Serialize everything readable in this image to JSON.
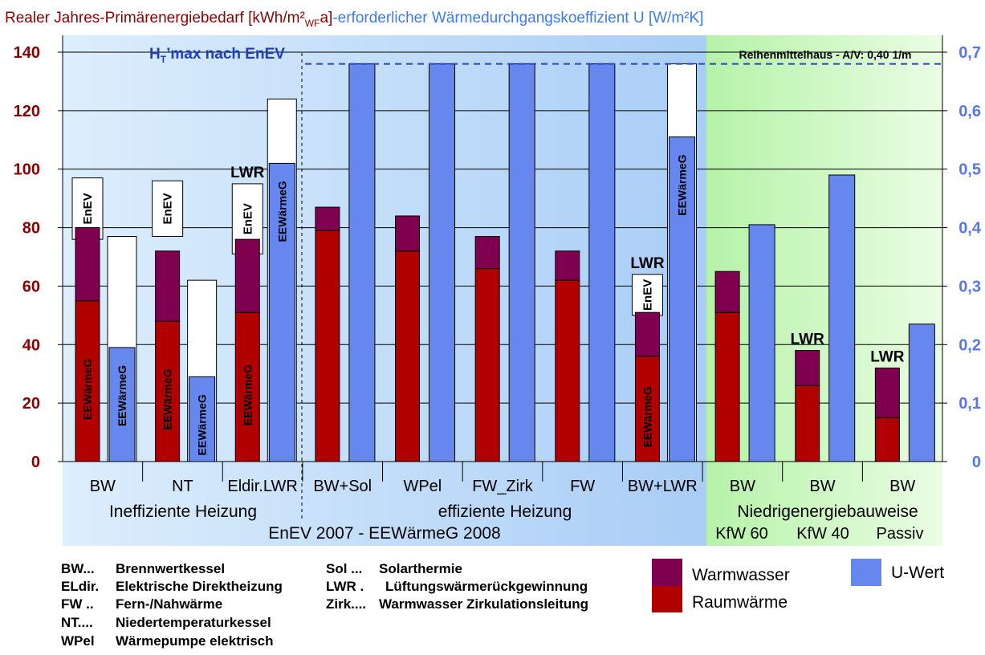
{
  "title_left": "Realer Jahres-Primärenergiebedarf [kWh/m²",
  "title_left_sub": "WF",
  "title_left_end": "a]",
  "title_right": "-erforderlicher Wärmedurchgangskoeffizient U [W/m²K]",
  "colors": {
    "warmwasser": "#800050",
    "raumwaerme": "#b00000",
    "uwert": "#6688ee",
    "left_axis": "#8b0000",
    "right_axis": "#5577ee",
    "enev_line": "#2244cc"
  },
  "chart_data": {
    "type": "bar",
    "title": "Realer Jahres-Primärenergiebedarf [kWh/m²WFa]-erforderlicher Wärmedurchgangskoeffizient U [W/m²K]",
    "ylim_left": [
      0,
      140
    ],
    "ylim_right": [
      0,
      0.7
    ],
    "yticks_left": [
      "0",
      "20",
      "40",
      "60",
      "80",
      "100",
      "120",
      "140"
    ],
    "yticks_right": [
      "0",
      "0,1",
      "0,2",
      "0,3",
      "0,4",
      "0,5",
      "0,6",
      "0,7"
    ],
    "categories": [
      "BW",
      "NT",
      "Eldir.LWR",
      "BW+Sol",
      "WPel",
      "FW_Zirk",
      "FW",
      "BW+LWR",
      "BW",
      "BW",
      "BW"
    ],
    "series": [
      {
        "name": "Raumwärme",
        "values": [
          55,
          48,
          51,
          79,
          72,
          66,
          62,
          36,
          51,
          26,
          15
        ]
      },
      {
        "name": "Warmwasser",
        "values": [
          25,
          24,
          25,
          8,
          12,
          11,
          10,
          15,
          14,
          12,
          17
        ]
      },
      {
        "name": "U-Wert",
        "values": [
          0.195,
          0.145,
          0.51,
          0.68,
          0.68,
          0.68,
          0.68,
          0.555,
          0.405,
          0.49,
          0.235
        ]
      }
    ],
    "enev_primary_limit": [
      97,
      96,
      95,
      null,
      null,
      null,
      null,
      64,
      null,
      null,
      null
    ],
    "enev_primary_lower": [
      76,
      77,
      71,
      null,
      null,
      null,
      null,
      50,
      null,
      null,
      null
    ],
    "enev_u_limit": [
      0.385,
      0.31,
      0.62,
      null,
      null,
      null,
      null,
      0.68,
      null,
      null,
      null
    ],
    "ht_max": 0.68,
    "ht_max_label": "H",
    "ht_max_label_sub": "T",
    "ht_max_label_end": "’max nach EnEV",
    "annotation": "Reihenmittelhaus - A/V: 0,40 1/m",
    "bar_top_labels": [
      "",
      "",
      "LWR",
      "",
      "",
      "",
      "",
      "LWR",
      "",
      "LWR",
      "LWR"
    ],
    "enev_label": "EnEV",
    "eew_label": "EEWärmeG",
    "group_labels": [
      "Ineffiziente Heizung",
      "effiziente Heizung",
      "Niedrigenergiebauweise"
    ],
    "group_sub_labels": [
      "KfW 60",
      "KfW 40",
      "Passiv"
    ],
    "footer": "EnEV 2007 - EEWärmeG 2008",
    "legend": [
      "Warmwasser",
      "Raumwärme",
      "U-Wert"
    ]
  },
  "abbreviations": [
    {
      "key": "BW...",
      "text": "Brennwertkessel"
    },
    {
      "key": "ELdir.",
      "text": "Elektrische Direktheizung"
    },
    {
      "key": "FW ..",
      "text": "Fern-/Nahwärme"
    },
    {
      "key": "NT....",
      "text": "Niedertemperaturkessel"
    },
    {
      "key": "WPel",
      "text": "Wärmepumpe elektrisch"
    },
    {
      "key": "Sol ...",
      "text": "Solarthermie"
    },
    {
      "key": "LWR .",
      "text": "Lüftungswärmerückgewinnung"
    },
    {
      "key": "Zirk....",
      "text": "Warmwasser Zirkulationsleitung"
    }
  ]
}
